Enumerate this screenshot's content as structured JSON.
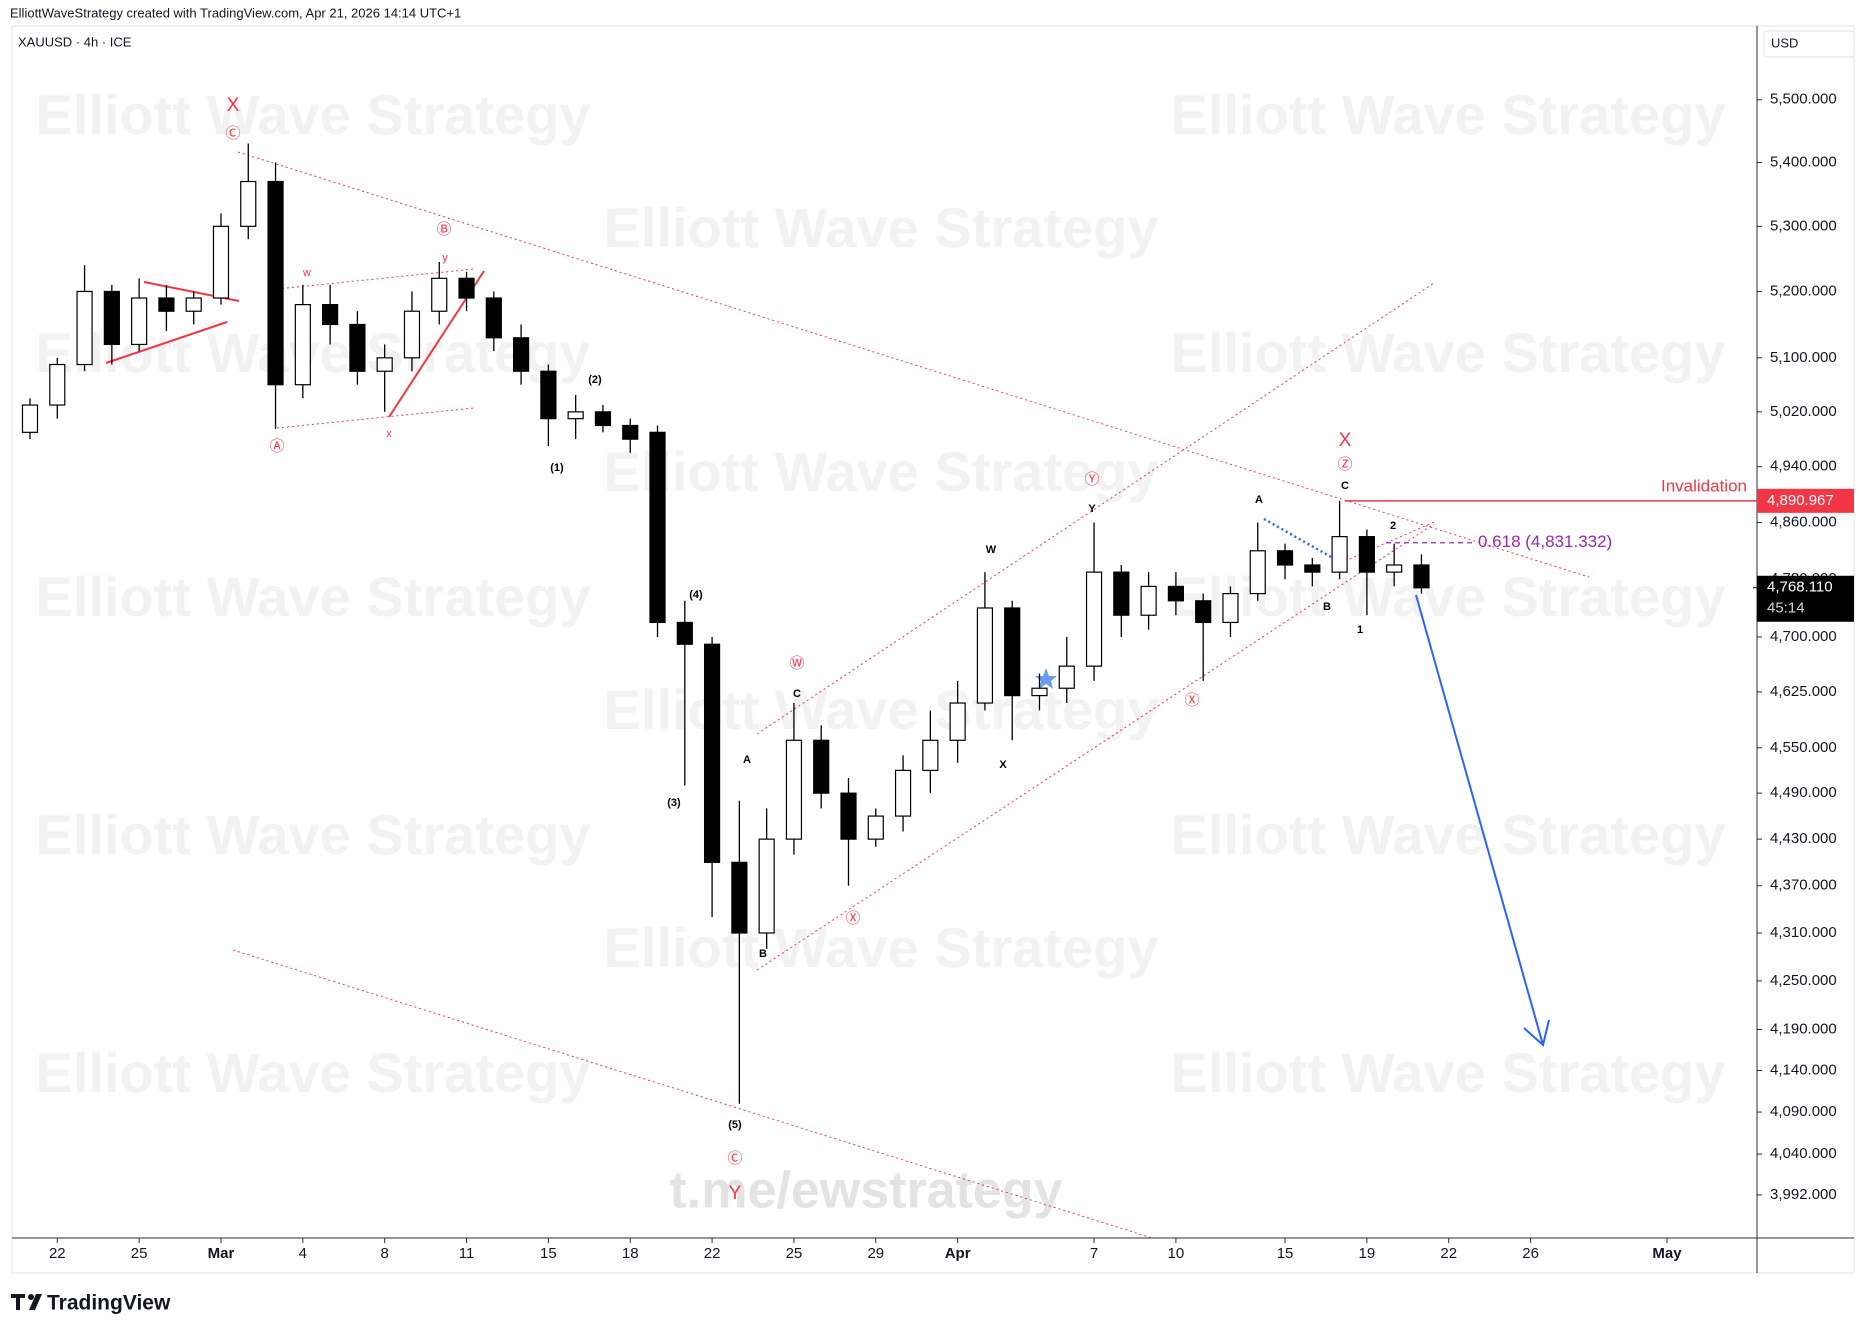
{
  "header": {
    "attribution": "ElliottWaveStrategy created with TradingView.com, Apr 21, 2026 14:14 UTC+1",
    "symbol": "XAUUSD · 4h · ICE",
    "currency": "USD"
  },
  "watermark": "Elliott Wave Strategy",
  "link": "t.me/ewstrategy",
  "brand": "TradingView",
  "chart_data": {
    "type": "candlestick",
    "x": [
      "Feb 20",
      "Feb 22",
      "Feb 23",
      "Feb 24",
      "Feb 25",
      "Feb 26",
      "Feb 27",
      "Mar 1",
      "Mar 2",
      "Mar 3",
      "Mar 4",
      "Mar 5",
      "Mar 6",
      "Mar 8",
      "Mar 9",
      "Mar 10",
      "Mar 11",
      "Mar 12",
      "Mar 13",
      "Mar 15",
      "Mar 16",
      "Mar 17",
      "Mar 18",
      "Mar 19",
      "Mar 20",
      "Mar 22",
      "Mar 23",
      "Mar 24",
      "Mar 25",
      "Mar 26",
      "Mar 27",
      "Mar 29",
      "Mar 30",
      "Mar 31",
      "Apr 1",
      "Apr 2",
      "Apr 3",
      "Apr 5",
      "Apr 6",
      "Apr 7",
      "Apr 8",
      "Apr 9",
      "Apr 10",
      "Apr 12",
      "Apr 13",
      "Apr 14",
      "Apr 15",
      "Apr 16",
      "Apr 17",
      "Apr 19",
      "Apr 20",
      "Apr 21",
      "Apr 22",
      "Apr 23",
      "Apr 24",
      "Apr 26",
      "Apr 27",
      "Apr 28",
      "Apr 29",
      "Apr 30",
      "May 1",
      "May 3",
      "May 4",
      "May 5"
    ],
    "series": [
      {
        "open": [
          4990,
          5030,
          5090,
          5200,
          5120,
          5190,
          5170,
          5190,
          5300,
          5370,
          5060,
          5180,
          5150,
          5080,
          5100,
          5170,
          5220,
          5190,
          5130,
          5080,
          5010,
          5020,
          5000,
          4990,
          4720,
          4690,
          4400,
          4310,
          4430,
          4560,
          4490,
          4430,
          4460,
          4520,
          4560,
          4610,
          4740,
          4620,
          4630,
          4660,
          4790,
          4730,
          4770,
          4750,
          4720,
          4760,
          4820,
          4800,
          4790,
          4840,
          4790,
          4800,
          null,
          null,
          null,
          null,
          null,
          null,
          null,
          null,
          null,
          null,
          null,
          null
        ],
        "high": [
          5040,
          5100,
          5240,
          5210,
          5220,
          5210,
          5200,
          5320,
          5430,
          5400,
          5210,
          5210,
          5170,
          5120,
          5200,
          5245,
          5230,
          5200,
          5150,
          5090,
          5045,
          5030,
          5010,
          5000,
          4750,
          4700,
          4480,
          4470,
          4610,
          4580,
          4510,
          4470,
          4540,
          4600,
          4640,
          4790,
          4750,
          4650,
          4700,
          4860,
          4800,
          4790,
          4790,
          4760,
          4770,
          4860,
          4830,
          4810,
          4891,
          4850,
          4830,
          4815,
          null,
          null,
          null,
          null,
          null,
          null,
          null,
          null,
          null,
          null,
          null,
          null
        ],
        "low": [
          4980,
          5010,
          5080,
          5090,
          5110,
          5140,
          5150,
          5180,
          5280,
          4995,
          5040,
          5120,
          5060,
          5020,
          5080,
          5150,
          5170,
          5110,
          5060,
          4970,
          4980,
          4990,
          4960,
          4700,
          4500,
          4330,
          4100,
          4290,
          4410,
          4470,
          4370,
          4420,
          4440,
          4490,
          4530,
          4600,
          4560,
          4600,
          4610,
          4640,
          4700,
          4710,
          4730,
          4640,
          4700,
          4750,
          4780,
          4770,
          4780,
          4730,
          4770,
          4760,
          null,
          null,
          null,
          null,
          null,
          null,
          null,
          null,
          null,
          null,
          null,
          null
        ],
        "close": [
          5030,
          5090,
          5200,
          5120,
          5190,
          5170,
          5190,
          5300,
          5370,
          5060,
          5180,
          5150,
          5080,
          5100,
          5170,
          5220,
          5190,
          5130,
          5080,
          5010,
          5020,
          5000,
          4980,
          4720,
          4690,
          4400,
          4310,
          4430,
          4560,
          4490,
          4430,
          4460,
          4520,
          4560,
          4610,
          4740,
          4620,
          4630,
          4660,
          4790,
          4730,
          4770,
          4750,
          4720,
          4760,
          4820,
          4800,
          4790,
          4840,
          4790,
          4800,
          4768.11,
          null,
          null,
          null,
          null,
          null,
          null,
          null,
          null,
          null,
          null,
          null,
          null
        ]
      }
    ],
    "up_color": "#ffffff",
    "down_color": "#000000",
    "wick_color": "#000000",
    "ylim": [
      3942,
      5620
    ],
    "log_scale": true,
    "grid": false,
    "yticks": [
      {
        "value": 5500,
        "label": "5,500.000"
      },
      {
        "value": 5400,
        "label": "5,400.000"
      },
      {
        "value": 5300,
        "label": "5,300.000"
      },
      {
        "value": 5200,
        "label": "5,200.000"
      },
      {
        "value": 5100,
        "label": "5,100.000"
      },
      {
        "value": 5020,
        "label": "5,020.000"
      },
      {
        "value": 4940,
        "label": "4,940.000"
      },
      {
        "value": 4860,
        "label": "4,860.000"
      },
      {
        "value": 4780,
        "label": "4,780.000"
      },
      {
        "value": 4700,
        "label": "4,700.000"
      },
      {
        "value": 4625,
        "label": "4,625.000"
      },
      {
        "value": 4550,
        "label": "4,550.000"
      },
      {
        "value": 4490,
        "label": "4,490.000"
      },
      {
        "value": 4430,
        "label": "4,430.000"
      },
      {
        "value": 4370,
        "label": "4,370.000"
      },
      {
        "value": 4310,
        "label": "4,310.000"
      },
      {
        "value": 4250,
        "label": "4,250.000"
      },
      {
        "value": 4190,
        "label": "4,190.000"
      },
      {
        "value": 4140,
        "label": "4,140.000"
      },
      {
        "value": 4090,
        "label": "4,090.000"
      },
      {
        "value": 4040,
        "label": "4,040.000"
      },
      {
        "value": 3992,
        "label": "3,992.000"
      }
    ],
    "xticks": [
      {
        "value": "Feb 22",
        "label": "22"
      },
      {
        "value": "Feb 25",
        "label": "25"
      },
      {
        "value": "Mar 1",
        "label": "Mar"
      },
      {
        "value": "Mar 4",
        "label": "4"
      },
      {
        "value": "Mar 8",
        "label": "8"
      },
      {
        "value": "Mar 11",
        "label": "11"
      },
      {
        "value": "Mar 15",
        "label": "15"
      },
      {
        "value": "Mar 18",
        "label": "18"
      },
      {
        "value": "Mar 22",
        "label": "22"
      },
      {
        "value": "Mar 25",
        "label": "25"
      },
      {
        "value": "Mar 29",
        "label": "29"
      },
      {
        "value": "Apr 1",
        "label": "Apr"
      },
      {
        "value": "Apr 7",
        "label": "7"
      },
      {
        "value": "Apr 10",
        "label": "10"
      },
      {
        "value": "Apr 15",
        "label": "15"
      },
      {
        "value": "Apr 19",
        "label": "19"
      },
      {
        "value": "Apr 22",
        "label": "22"
      },
      {
        "value": "Apr 26",
        "label": "26"
      },
      {
        "value": "May 1",
        "label": "May"
      }
    ],
    "wave_labels": [
      "X",
      "Ⓒ",
      "Ⓑ",
      "y",
      "w",
      "x",
      "Ⓐ",
      "(1)",
      "(2)",
      "(3)",
      "(4)",
      "(5)",
      "Ⓒ",
      "Y",
      "A",
      "B",
      "C",
      "Ⓦ",
      "Ⓧ",
      "W",
      "X",
      "Y",
      "Ⓨ",
      "Ⓧ",
      "A",
      "B",
      "C",
      "Ⓩ",
      "X",
      "1",
      "2"
    ],
    "levels": [
      {
        "name": "Invalidation",
        "value": 4890.967,
        "label": "4,890.967",
        "color": "#f23645"
      }
    ],
    "fib": {
      "label": "0.618 (4,831.332)",
      "value": 4831.332,
      "color": "#9c27b0"
    },
    "last_price": {
      "value": 4768.11,
      "label": "4,768.110",
      "countdown": "45:14",
      "color": "#000000"
    }
  }
}
